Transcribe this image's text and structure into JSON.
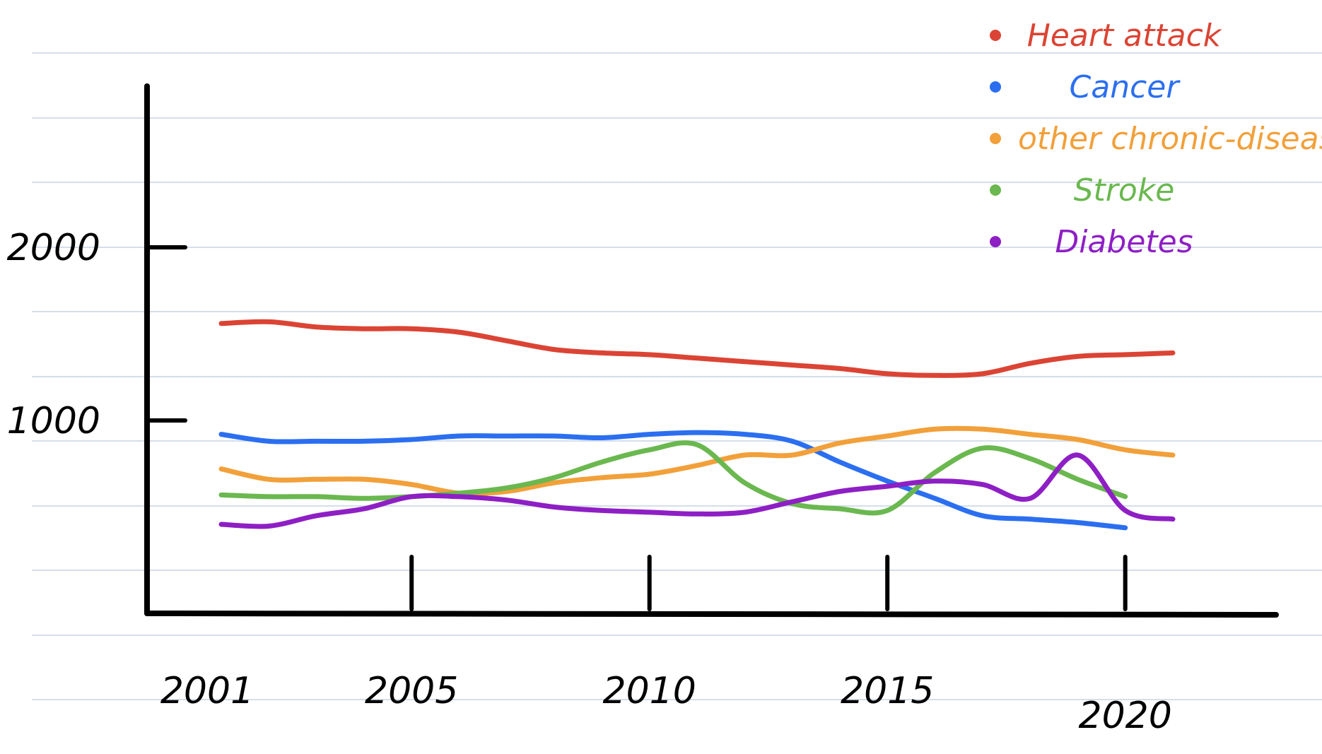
{
  "chart_data": {
    "type": "line",
    "title": "",
    "xlabel": "",
    "ylabel": "",
    "x_ticks": [
      "2001",
      "2005",
      "2010",
      "2015",
      "2020"
    ],
    "y_ticks": [
      "1000",
      "2000"
    ],
    "xlim": [
      2001,
      2021
    ],
    "ylim": [
      0,
      2000
    ],
    "grid": true,
    "legend_position": "top-right",
    "series": [
      {
        "name": "Heart attack",
        "color": "#db4434",
        "x": [
          2001,
          2002,
          2003,
          2004,
          2005,
          2006,
          2007,
          2008,
          2009,
          2010,
          2011,
          2012,
          2013,
          2014,
          2015,
          2016,
          2017,
          2018,
          2019,
          2020,
          2021
        ],
        "y": [
          1560,
          1570,
          1540,
          1530,
          1530,
          1510,
          1460,
          1410,
          1390,
          1380,
          1360,
          1340,
          1320,
          1300,
          1270,
          1260,
          1270,
          1330,
          1370,
          1380,
          1390
        ]
      },
      {
        "name": "Cancer",
        "color": "#2b6ff0",
        "x": [
          2001,
          2002,
          2003,
          2004,
          2005,
          2006,
          2007,
          2008,
          2009,
          2010,
          2011,
          2012,
          2013,
          2014,
          2015,
          2016,
          2017,
          2018,
          2019,
          2020
        ],
        "y": [
          920,
          880,
          880,
          880,
          890,
          910,
          910,
          910,
          900,
          920,
          930,
          920,
          880,
          760,
          650,
          550,
          450,
          430,
          410,
          380
        ]
      },
      {
        "name": "other chronic-disease",
        "color": "#f2a03a",
        "x": [
          2001,
          2002,
          2003,
          2004,
          2005,
          2006,
          2007,
          2008,
          2009,
          2010,
          2011,
          2012,
          2013,
          2014,
          2015,
          2016,
          2017,
          2018,
          2019,
          2020,
          2021
        ],
        "y": [
          720,
          660,
          660,
          660,
          630,
          580,
          590,
          640,
          670,
          690,
          740,
          800,
          800,
          870,
          910,
          950,
          950,
          920,
          890,
          830,
          800
        ]
      },
      {
        "name": "Stroke",
        "color": "#6ab84f",
        "x": [
          2001,
          2002,
          2003,
          2004,
          2005,
          2006,
          2007,
          2008,
          2009,
          2010,
          2011,
          2012,
          2013,
          2014,
          2015,
          2016,
          2017,
          2018,
          2019,
          2020
        ],
        "y": [
          570,
          560,
          560,
          550,
          560,
          580,
          610,
          670,
          760,
          830,
          860,
          640,
          520,
          490,
          480,
          700,
          840,
          780,
          660,
          560
        ]
      },
      {
        "name": "Diabetes",
        "color": "#8e1fc4",
        "x": [
          2001,
          2002,
          2003,
          2004,
          2005,
          2006,
          2007,
          2008,
          2009,
          2010,
          2011,
          2012,
          2013,
          2014,
          2015,
          2016,
          2017,
          2018,
          2019,
          2020,
          2021
        ],
        "y": [
          400,
          390,
          450,
          490,
          560,
          560,
          540,
          500,
          480,
          470,
          460,
          470,
          530,
          590,
          620,
          650,
          630,
          550,
          800,
          480,
          430
        ]
      }
    ]
  }
}
